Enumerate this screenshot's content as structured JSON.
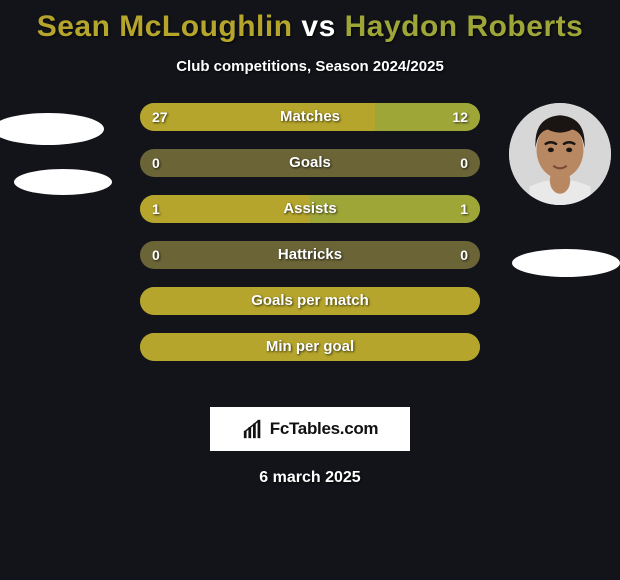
{
  "background_color": "#12141a",
  "title": {
    "player1_name": "Sean McLoughlin",
    "vs": " vs ",
    "player2_name": "Haydon Roberts",
    "player1_color": "#b5a52c",
    "player2_color": "#9fa638",
    "fontsize": 30
  },
  "subtitle": {
    "text": "Club competitions, Season 2024/2025",
    "fontsize": 15,
    "color": "#ffffff"
  },
  "avatars": {
    "left": {
      "bg": "#d7d7d7"
    },
    "right": {
      "bg": "#d7d7d7",
      "skin": "#b78862",
      "hair": "#1a1412",
      "shirt": "#e9e9e9"
    }
  },
  "bars": {
    "track_color": "#6a6437",
    "left_fill_color": "#b5a52c",
    "right_fill_color": "#9fa638",
    "label_color": "#ffffff",
    "value_color": "#ffffff",
    "height": 28,
    "radius": 14,
    "gap": 18,
    "rows": [
      {
        "label": "Matches",
        "left_val": "27",
        "right_val": "12",
        "left_pct": 69,
        "right_pct": 31
      },
      {
        "label": "Goals",
        "left_val": "0",
        "right_val": "0",
        "left_pct": 0,
        "right_pct": 0
      },
      {
        "label": "Assists",
        "left_val": "1",
        "right_val": "1",
        "left_pct": 50,
        "right_pct": 50
      },
      {
        "label": "Hattricks",
        "left_val": "0",
        "right_val": "0",
        "left_pct": 0,
        "right_pct": 0
      },
      {
        "label": "Goals per match",
        "left_val": "",
        "right_val": "",
        "left_pct": 100,
        "right_pct": 0
      },
      {
        "label": "Min per goal",
        "left_val": "",
        "right_val": "",
        "left_pct": 100,
        "right_pct": 0
      }
    ]
  },
  "branding": {
    "text": "FcTables.com",
    "bg": "#ffffff",
    "text_color": "#111111"
  },
  "date": {
    "text": "6 march 2025",
    "color": "#ffffff",
    "fontsize": 16
  }
}
